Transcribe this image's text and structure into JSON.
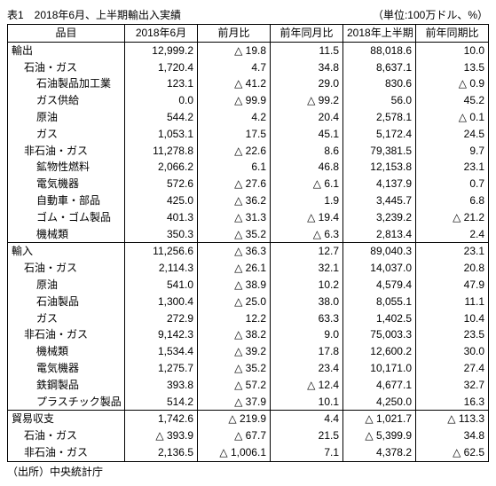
{
  "title": "表1　2018年6月、上半期輸出入実績",
  "unit": "（単位:100万ドル、%）",
  "columns": [
    "品目",
    "2018年6月",
    "前月比",
    "前年同月比",
    "2018年上半期",
    "前年同期比"
  ],
  "rows": [
    {
      "section": true,
      "indent": 0,
      "label": "輸出",
      "v": [
        "12,999.2",
        "△ 19.8",
        "11.5",
        "88,018.6",
        "10.0"
      ]
    },
    {
      "indent": 1,
      "label": "石油・ガス",
      "v": [
        "1,720.4",
        "4.7",
        "34.8",
        "8,637.1",
        "13.5"
      ]
    },
    {
      "indent": 2,
      "label": "石油製品加工業",
      "v": [
        "123.1",
        "△ 41.2",
        "29.0",
        "830.6",
        "△ 0.9"
      ]
    },
    {
      "indent": 2,
      "label": "ガス供給",
      "v": [
        "0.0",
        "△ 99.9",
        "△ 99.2",
        "56.0",
        "45.2"
      ]
    },
    {
      "indent": 2,
      "label": "原油",
      "v": [
        "544.2",
        "4.2",
        "20.4",
        "2,578.1",
        "△ 0.1"
      ]
    },
    {
      "indent": 2,
      "label": "ガス",
      "v": [
        "1,053.1",
        "17.5",
        "45.1",
        "5,172.4",
        "24.5"
      ]
    },
    {
      "indent": 1,
      "label": "非石油・ガス",
      "v": [
        "11,278.8",
        "△ 22.6",
        "8.6",
        "79,381.5",
        "9.7"
      ]
    },
    {
      "indent": 2,
      "label": "鉱物性燃料",
      "v": [
        "2,066.2",
        "6.1",
        "46.8",
        "12,153.8",
        "23.1"
      ]
    },
    {
      "indent": 2,
      "label": "電気機器",
      "v": [
        "572.6",
        "△ 27.6",
        "△ 6.1",
        "4,137.9",
        "0.7"
      ]
    },
    {
      "indent": 2,
      "label": "自動車・部品",
      "v": [
        "425.0",
        "△ 36.2",
        "1.9",
        "3,445.7",
        "6.8"
      ]
    },
    {
      "indent": 2,
      "label": "ゴム・ゴム製品",
      "v": [
        "401.3",
        "△ 31.3",
        "△ 19.4",
        "3,239.2",
        "△ 21.2"
      ]
    },
    {
      "indent": 2,
      "label": "機械類",
      "v": [
        "350.3",
        "△ 35.2",
        "△ 6.3",
        "2,813.4",
        "2.4"
      ]
    },
    {
      "section": true,
      "indent": 0,
      "label": "輸入",
      "v": [
        "11,256.6",
        "△ 36.3",
        "12.7",
        "89,040.3",
        "23.1"
      ]
    },
    {
      "indent": 1,
      "label": "石油・ガス",
      "v": [
        "2,114.3",
        "△ 26.1",
        "32.1",
        "14,037.0",
        "20.8"
      ]
    },
    {
      "indent": 2,
      "label": "原油",
      "v": [
        "541.0",
        "△ 38.9",
        "10.2",
        "4,579.4",
        "47.9"
      ]
    },
    {
      "indent": 2,
      "label": "石油製品",
      "v": [
        "1,300.4",
        "△ 25.0",
        "38.0",
        "8,055.1",
        "11.1"
      ]
    },
    {
      "indent": 2,
      "label": "ガス",
      "v": [
        "272.9",
        "12.2",
        "63.3",
        "1,402.5",
        "10.4"
      ]
    },
    {
      "indent": 1,
      "label": "非石油・ガス",
      "v": [
        "9,142.3",
        "△ 38.2",
        "9.0",
        "75,003.3",
        "23.5"
      ]
    },
    {
      "indent": 2,
      "label": "機械類",
      "v": [
        "1,534.4",
        "△ 39.2",
        "17.8",
        "12,600.2",
        "30.0"
      ]
    },
    {
      "indent": 2,
      "label": "電気機器",
      "v": [
        "1,275.7",
        "△ 35.2",
        "23.4",
        "10,171.0",
        "27.4"
      ]
    },
    {
      "indent": 2,
      "label": "鉄鋼製品",
      "v": [
        "393.8",
        "△ 57.2",
        "△ 12.4",
        "4,677.1",
        "32.7"
      ]
    },
    {
      "indent": 2,
      "label": "プラスチック製品",
      "v": [
        "514.2",
        "△ 37.9",
        "10.1",
        "4,250.0",
        "16.3"
      ]
    },
    {
      "section": true,
      "indent": 0,
      "label": "貿易収支",
      "v": [
        "1,742.6",
        "△ 219.9",
        "4.4",
        "△ 1,021.7",
        "△ 113.3"
      ]
    },
    {
      "indent": 1,
      "label": "石油・ガス",
      "v": [
        "△ 393.9",
        "△ 67.7",
        "21.5",
        "△ 5,399.9",
        "34.8"
      ]
    },
    {
      "last": true,
      "indent": 1,
      "label": "非石油・ガス",
      "v": [
        "2,136.5",
        "△ 1,006.1",
        "7.1",
        "4,378.2",
        "△ 62.5"
      ]
    }
  ],
  "source": "（出所）中央統計庁"
}
